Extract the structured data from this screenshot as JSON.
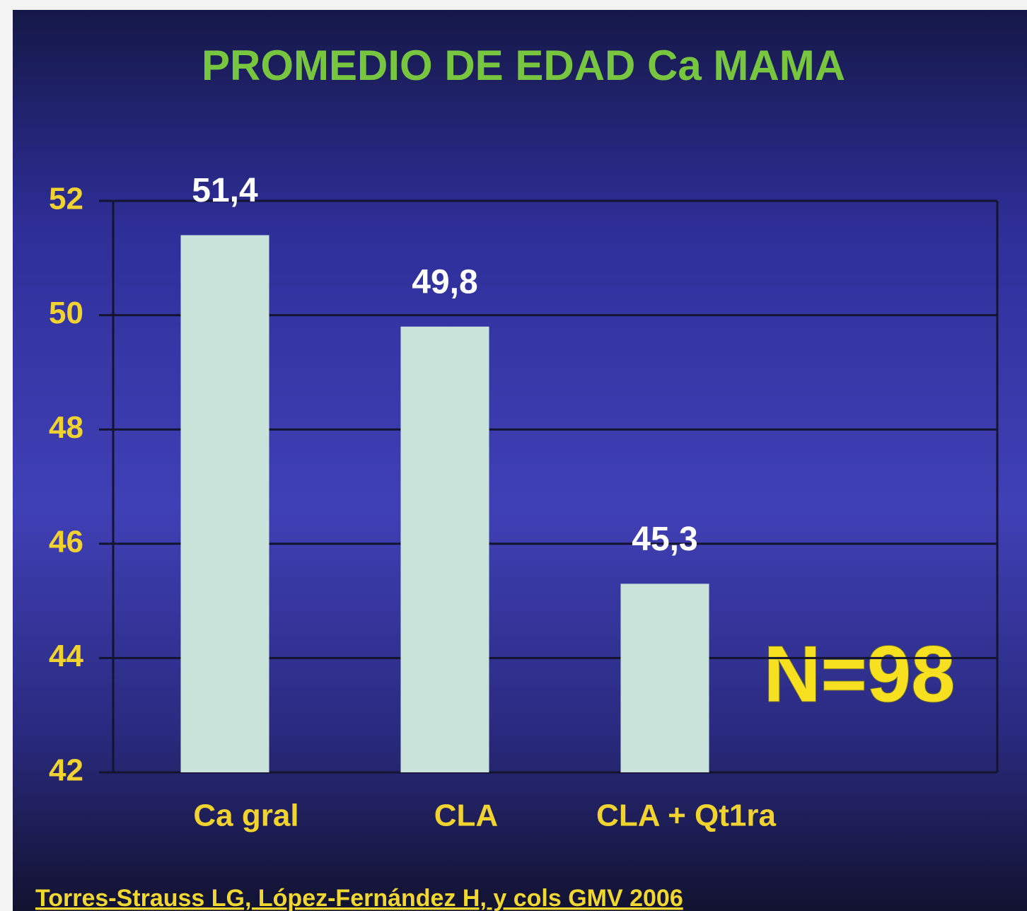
{
  "chart_data": {
    "type": "bar",
    "title": "PROMEDIO DE EDAD Ca MAMA",
    "categories": [
      "Ca gral",
      "CLA",
      "CLA + Qt1ra"
    ],
    "values": [
      51.4,
      49.8,
      45.3
    ],
    "value_labels": [
      "51,4",
      "49,8",
      "45,3"
    ],
    "color": "#c9e2da",
    "ylim": [
      42,
      52
    ],
    "yticks": [
      42,
      44,
      46,
      48,
      50,
      52
    ],
    "grid": true,
    "annotation": "N=98",
    "source": "Torres-Strauss LG, López-Fernández H, y cols GMV 2006"
  }
}
